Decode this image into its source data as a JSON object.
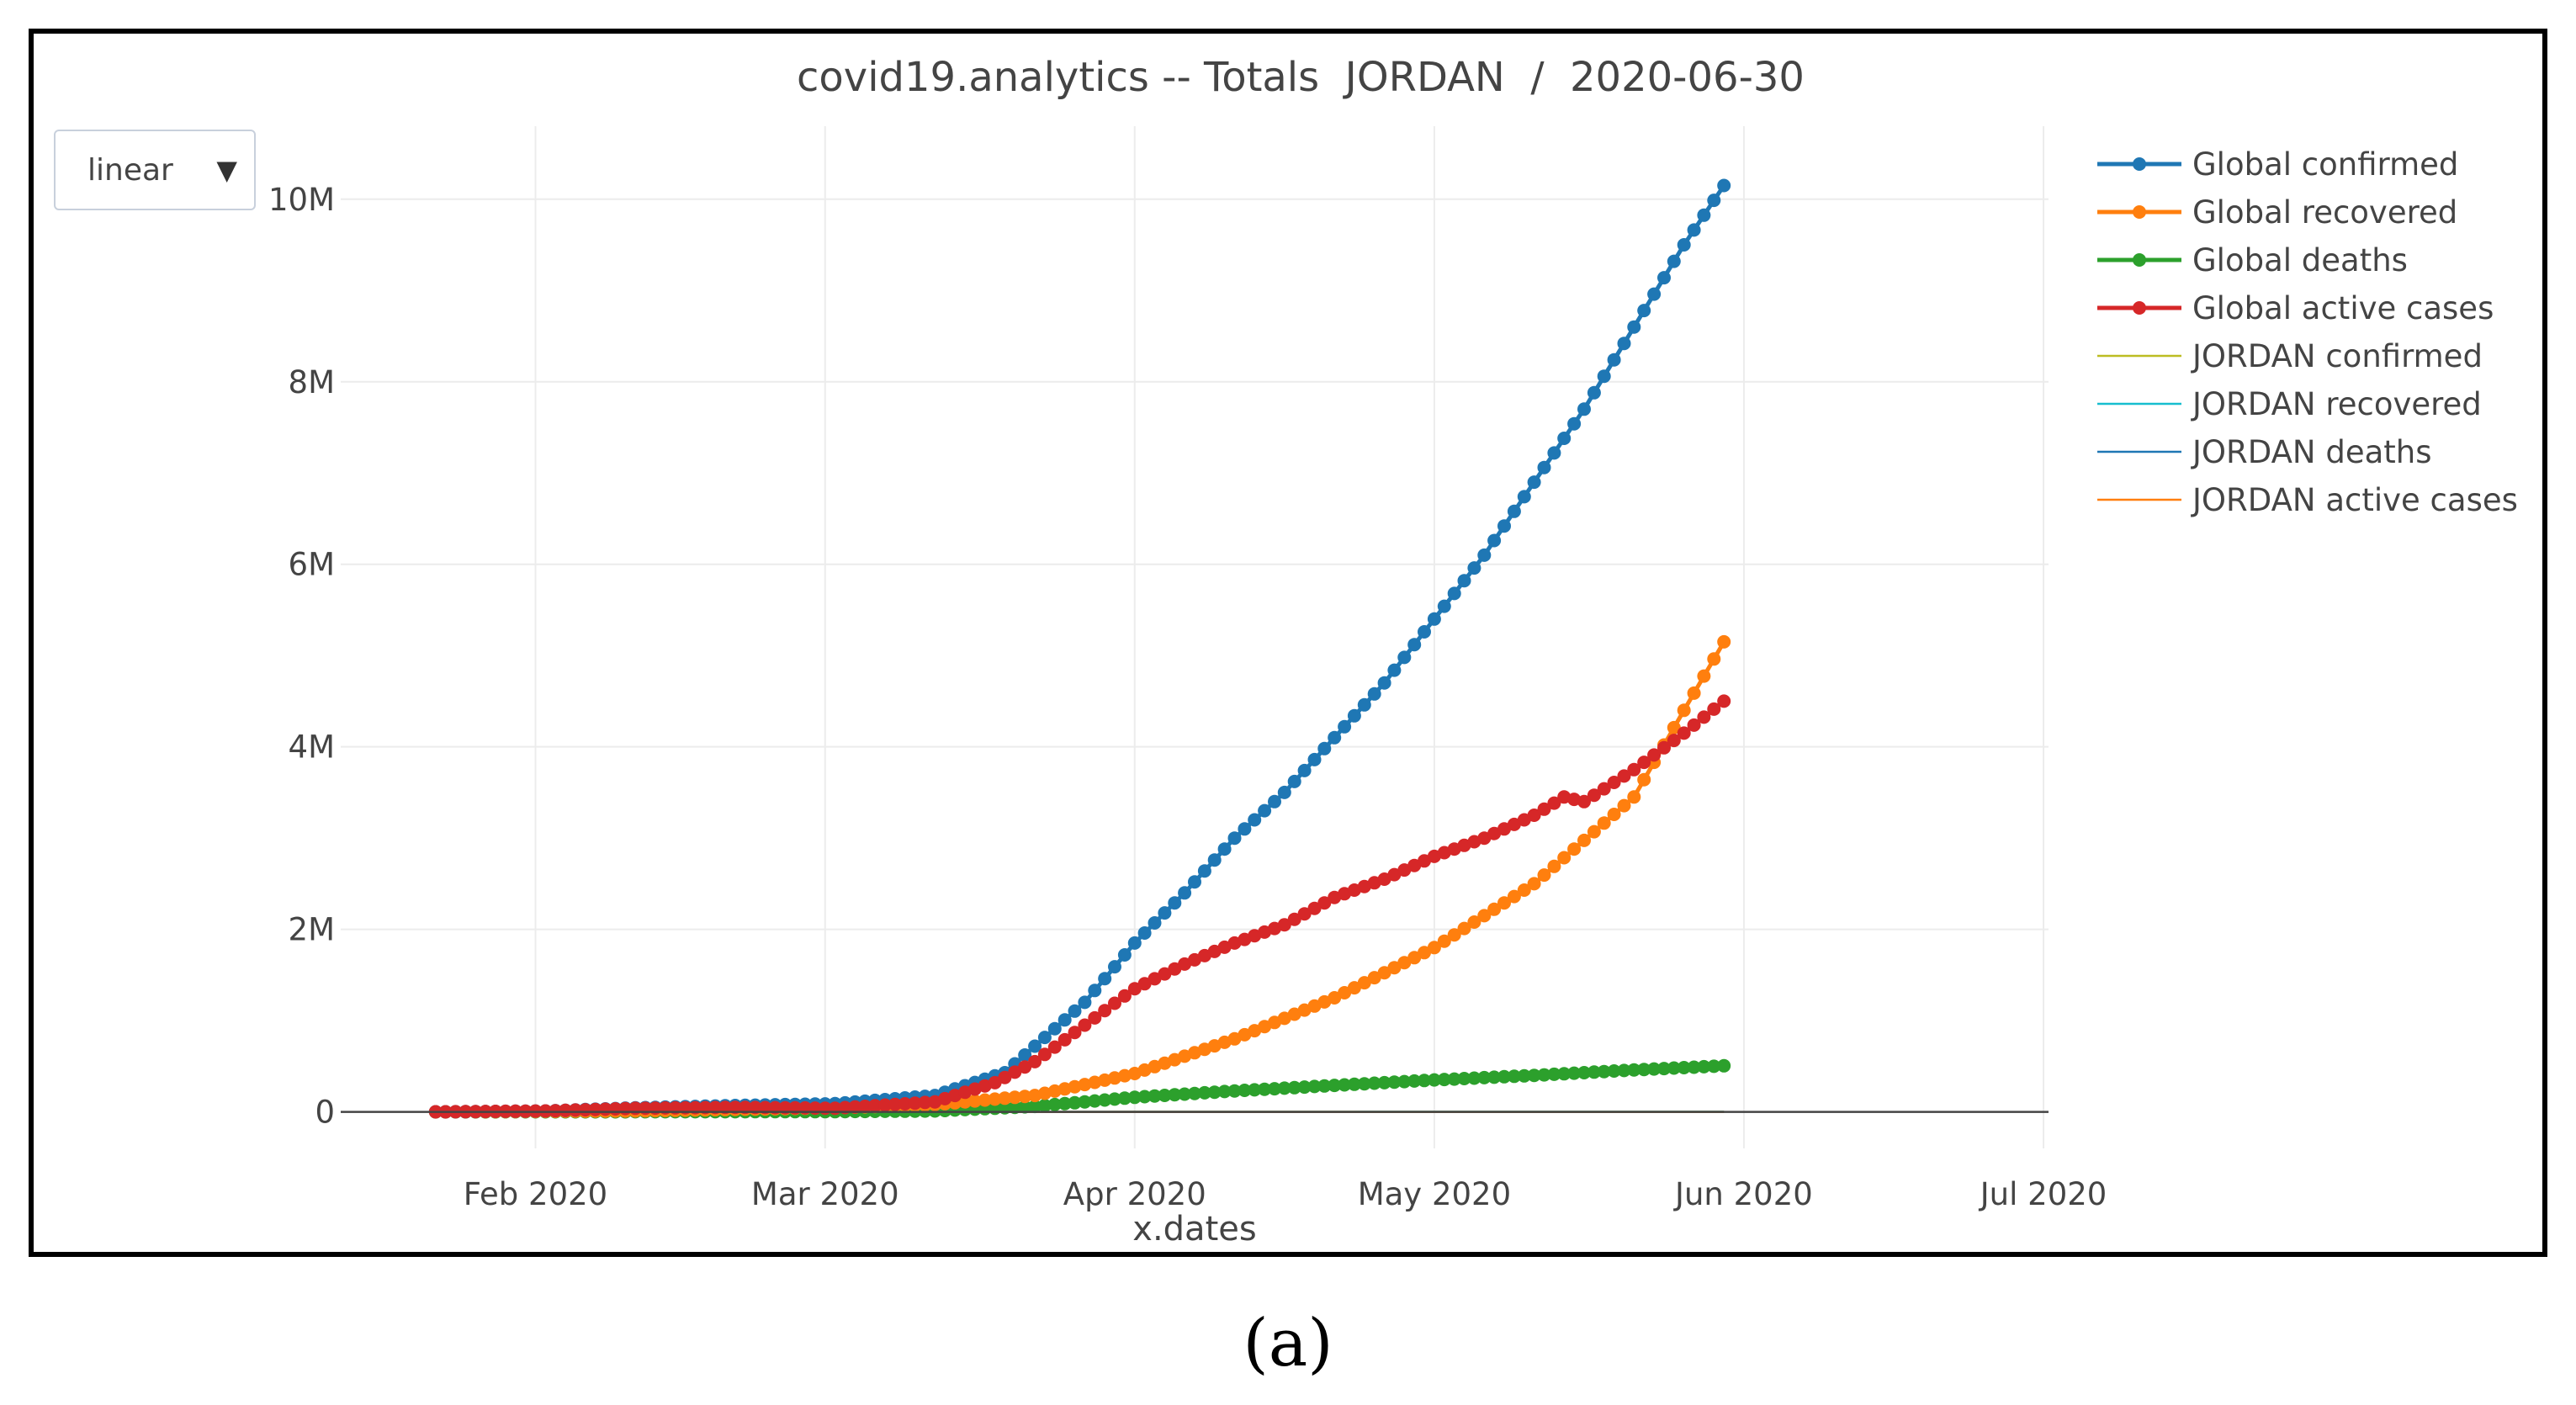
{
  "chart_data": {
    "type": "line",
    "title": "covid19.analytics -- Totals  JORDAN  /  2020-06-30",
    "xlabel": "x.dates",
    "ylabel": "",
    "x_tick_labels": [
      "Feb 2020",
      "Mar 2020",
      "Apr 2020",
      "May 2020",
      "Jun 2020",
      "Jul 2020"
    ],
    "y_tick_labels": [
      "0",
      "2M",
      "4M",
      "6M",
      "8M",
      "10M"
    ],
    "y_ticks": [
      0,
      2000000,
      4000000,
      6000000,
      8000000,
      10000000
    ],
    "ylim": [
      -400000,
      10800000
    ],
    "x_range_days": [
      -9.5,
      161.5
    ],
    "x_start_date": "2020-01-22",
    "x_end_date": "2020-06-29",
    "scale_dropdown": "linear",
    "series": [
      {
        "name": "Global confirmed",
        "color": "#1f77b4",
        "markers": true,
        "points": [
          [
            0,
            555
          ],
          [
            11,
            10000
          ],
          [
            20,
            45000
          ],
          [
            30,
            70000
          ],
          [
            40,
            90000
          ],
          [
            50,
            180000
          ],
          [
            57,
            430000
          ],
          [
            60,
            720000
          ],
          [
            65,
            1200000
          ],
          [
            70,
            1850000
          ],
          [
            75,
            2400000
          ],
          [
            80,
            3000000
          ],
          [
            85,
            3500000
          ],
          [
            90,
            4100000
          ],
          [
            95,
            4700000
          ],
          [
            100,
            5400000
          ],
          [
            105,
            6100000
          ],
          [
            110,
            6900000
          ],
          [
            115,
            7700000
          ],
          [
            120,
            8600000
          ],
          [
            125,
            9500000
          ],
          [
            129,
            10150000
          ]
        ]
      },
      {
        "name": "Global recovered",
        "color": "#ff7f0e",
        "markers": true,
        "points": [
          [
            0,
            0
          ],
          [
            20,
            10000
          ],
          [
            40,
            45000
          ],
          [
            50,
            80000
          ],
          [
            60,
            180000
          ],
          [
            70,
            420000
          ],
          [
            80,
            800000
          ],
          [
            90,
            1250000
          ],
          [
            100,
            1800000
          ],
          [
            110,
            2500000
          ],
          [
            120,
            3450000
          ],
          [
            125,
            4400000
          ],
          [
            129,
            5150000
          ]
        ]
      },
      {
        "name": "Global deaths",
        "color": "#2ca02c",
        "markers": true,
        "points": [
          [
            0,
            17
          ],
          [
            40,
            3000
          ],
          [
            50,
            10000
          ],
          [
            60,
            60000
          ],
          [
            70,
            160000
          ],
          [
            80,
            230000
          ],
          [
            90,
            290000
          ],
          [
            100,
            350000
          ],
          [
            110,
            400000
          ],
          [
            120,
            460000
          ],
          [
            129,
            505000
          ]
        ]
      },
      {
        "name": "Global active cases",
        "color": "#d62728",
        "markers": true,
        "points": [
          [
            0,
            538
          ],
          [
            11,
            10000
          ],
          [
            20,
            40000
          ],
          [
            30,
            50000
          ],
          [
            40,
            40000
          ],
          [
            50,
            110000
          ],
          [
            56,
            320000
          ],
          [
            60,
            550000
          ],
          [
            65,
            950000
          ],
          [
            70,
            1350000
          ],
          [
            75,
            1620000
          ],
          [
            80,
            1850000
          ],
          [
            85,
            2050000
          ],
          [
            90,
            2350000
          ],
          [
            95,
            2550000
          ],
          [
            100,
            2800000
          ],
          [
            105,
            3000000
          ],
          [
            110,
            3250000
          ],
          [
            113,
            3450000
          ],
          [
            115,
            3400000
          ],
          [
            120,
            3750000
          ],
          [
            125,
            4150000
          ],
          [
            129,
            4500000
          ]
        ]
      },
      {
        "name": "JORDAN confirmed",
        "color": "#bcbd22",
        "markers": false,
        "points": [
          [
            0,
            0
          ],
          [
            40,
            250
          ],
          [
            129,
            1150
          ]
        ]
      },
      {
        "name": "JORDAN recovered",
        "color": "#17becf",
        "markers": false,
        "points": [
          [
            0,
            0
          ],
          [
            50,
            100
          ],
          [
            129,
            900
          ]
        ]
      },
      {
        "name": "JORDAN deaths",
        "color": "#1f77b4",
        "markers": false,
        "points": [
          [
            0,
            0
          ],
          [
            129,
            9
          ]
        ]
      },
      {
        "name": "JORDAN active cases",
        "color": "#ff7f0e",
        "markers": false,
        "points": [
          [
            0,
            0
          ],
          [
            60,
            200
          ],
          [
            129,
            240
          ]
        ]
      }
    ],
    "legend_position": "top-right"
  },
  "caption": "(a)"
}
